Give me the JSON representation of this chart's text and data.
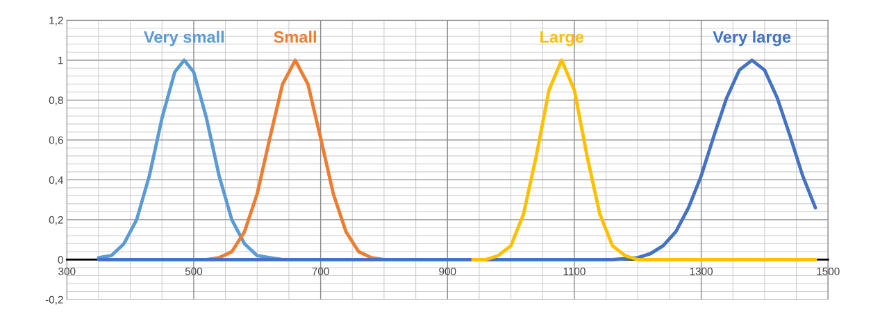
{
  "chart_data": {
    "type": "line",
    "xlim": [
      300,
      1500
    ],
    "ylim": [
      -0.2,
      1.2
    ],
    "xticks": [
      300,
      500,
      700,
      900,
      1100,
      1300,
      1500
    ],
    "yticks": [
      {
        "value": -0.2,
        "label": "-0,2"
      },
      {
        "value": 0,
        "label": "0"
      },
      {
        "value": 0.2,
        "label": "0,2"
      },
      {
        "value": 0.4,
        "label": "0,4"
      },
      {
        "value": 0.6,
        "label": "0,6"
      },
      {
        "value": 0.8,
        "label": "0,8"
      },
      {
        "value": 1,
        "label": "1"
      },
      {
        "value": 1.2,
        "label": "1,2"
      }
    ],
    "grid": true,
    "legend": false,
    "marker": "none",
    "line_style": "solid",
    "series": [
      {
        "name": "Very small",
        "color": "#5b9bd5",
        "x": [
          350,
          370,
          390,
          410,
          430,
          450,
          470,
          485,
          500,
          520,
          540,
          560,
          580,
          600,
          620,
          640,
          660
        ],
        "values": [
          0.01,
          0.02,
          0.08,
          0.2,
          0.42,
          0.71,
          0.94,
          1,
          0.94,
          0.71,
          0.42,
          0.2,
          0.08,
          0.02,
          0.01,
          0,
          0
        ]
      },
      {
        "name": "Small",
        "color": "#ed7d31",
        "x": [
          500,
          520,
          540,
          560,
          580,
          600,
          620,
          640,
          660,
          680,
          700,
          720,
          740,
          760,
          780,
          800,
          820
        ],
        "values": [
          0,
          0,
          0.01,
          0.04,
          0.14,
          0.33,
          0.61,
          0.88,
          1,
          0.88,
          0.61,
          0.33,
          0.14,
          0.04,
          0.01,
          0,
          0
        ]
      },
      {
        "name": "Very large",
        "color": "#4472c4",
        "x": [
          350,
          1100,
          1160,
          1200,
          1220,
          1240,
          1260,
          1280,
          1300,
          1320,
          1340,
          1360,
          1380,
          1400,
          1420,
          1440,
          1460,
          1480
        ],
        "values": [
          0,
          0,
          0,
          0.01,
          0.03,
          0.07,
          0.14,
          0.26,
          0.42,
          0.62,
          0.81,
          0.95,
          1,
          0.95,
          0.81,
          0.62,
          0.42,
          0.26
        ]
      },
      {
        "name": "Large",
        "color": "#ffc000",
        "x": [
          940,
          960,
          980,
          1000,
          1020,
          1040,
          1060,
          1080,
          1100,
          1120,
          1140,
          1160,
          1180,
          1200,
          1220,
          1480
        ],
        "values": [
          0,
          0,
          0.02,
          0.07,
          0.23,
          0.52,
          0.85,
          1,
          0.85,
          0.52,
          0.23,
          0.07,
          0.02,
          0,
          0,
          0
        ]
      }
    ]
  }
}
